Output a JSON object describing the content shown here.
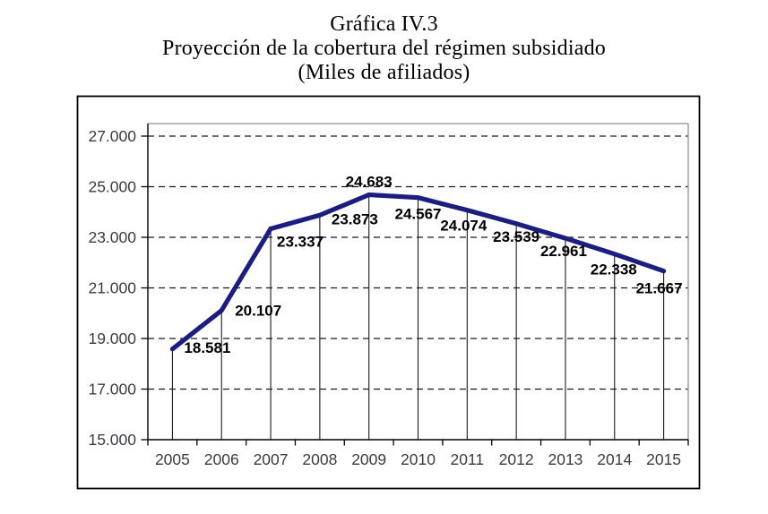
{
  "title": {
    "line1": "Gráfica IV.3",
    "line2": "Proyección de la cobertura del régimen subsidiado",
    "line3": "(Miles de afiliados)"
  },
  "chart_data": {
    "type": "line",
    "title": "Gráfica IV.3 - Proyección de la cobertura del régimen subsidiado (Miles de afiliados)",
    "categories": [
      "2005",
      "2006",
      "2007",
      "2008",
      "2009",
      "2010",
      "2011",
      "2012",
      "2013",
      "2014",
      "2015"
    ],
    "series": [
      {
        "name": "Cobertura del régimen subsidiado (miles de afiliados)",
        "values": [
          18581,
          20107,
          23337,
          23873,
          24683,
          24567,
          24074,
          23539,
          22961,
          22338,
          21667
        ],
        "labels": [
          "18.581",
          "20.107",
          "23.337",
          "23.873",
          "24.683",
          "24.567",
          "24.074",
          "23.539",
          "22.961",
          "22.338",
          "21.667"
        ]
      }
    ],
    "xlabel": "",
    "ylabel": "",
    "ylim": [
      15000,
      27000
    ],
    "ytick_interval": 2000,
    "ytick_labels": [
      "15.000",
      "17.000",
      "19.000",
      "21.000",
      "23.000",
      "25.000",
      "27.000"
    ],
    "grid": "horizontal-dashed",
    "legend": "none",
    "colors": {
      "line": "#1c1c87",
      "data_label": "#000000",
      "axis_text": "#3b3b44",
      "grid_line": "#1a1a1a",
      "dropline": "#1a1a1a",
      "plot_frame": "#8e8e8e",
      "axis_line": "#000000",
      "outer_border": "#000000",
      "background": "#ffffff"
    }
  }
}
